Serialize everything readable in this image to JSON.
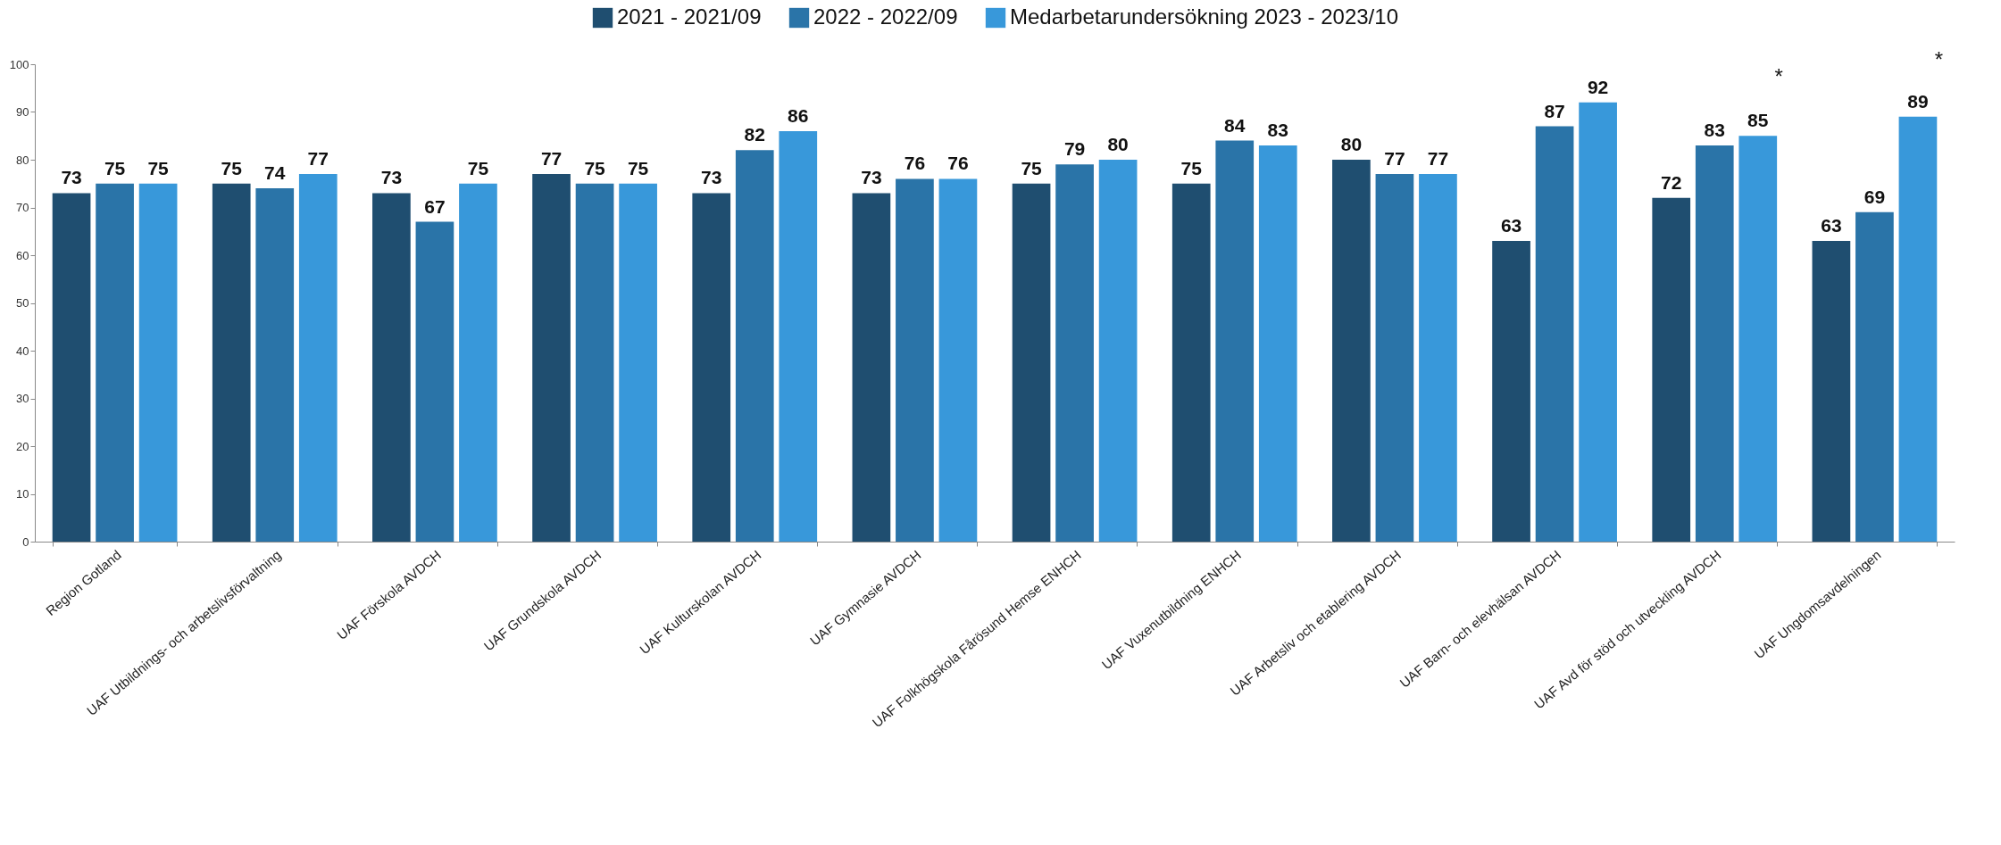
{
  "chart_data": {
    "type": "bar",
    "categories": [
      "Region Gotland",
      "UAF Utbildnings- och arbetslivsförvaltning",
      "UAF Förskola AVDCH",
      "UAF Grundskola AVDCH",
      "UAF Kulturskolan AVDCH",
      "UAF Gymnasie AVDCH",
      "UAF Folkhögskola Fårösund Hemse ENHCH",
      "UAF Vuxenutbildning ENHCH",
      "UAF Arbetsliv och etablering AVDCH",
      "UAF Barn- och elevhälsan AVDCH",
      "UAF Avd för stöd och utveckling AVDCH",
      "UAF Ungdomsavdelningen"
    ],
    "series": [
      {
        "name": "2021 - 2021/09",
        "color": "#1f4e70",
        "values": [
          73,
          75,
          73,
          77,
          73,
          73,
          75,
          75,
          80,
          63,
          72,
          63
        ]
      },
      {
        "name": "2022 - 2022/09",
        "color": "#2a74a8",
        "values": [
          75,
          74,
          67,
          75,
          82,
          76,
          79,
          84,
          77,
          87,
          83,
          69
        ]
      },
      {
        "name": "Medarbetarundersökning 2023 - 2023/10",
        "color": "#3898da",
        "values": [
          75,
          77,
          75,
          75,
          86,
          76,
          80,
          83,
          77,
          92,
          85,
          89
        ]
      }
    ],
    "ylim": [
      0,
      100
    ],
    "yticks": [
      0,
      10,
      20,
      30,
      40,
      50,
      60,
      70,
      80,
      90,
      100
    ],
    "grid": false,
    "legend": "top",
    "data_labels": true,
    "annotations": [
      "*",
      "*"
    ]
  }
}
